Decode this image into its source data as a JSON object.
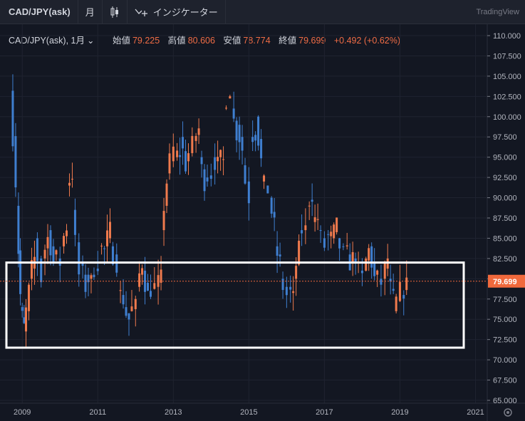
{
  "toolbar": {
    "symbol": "CAD/JPY(ask)",
    "interval": "月",
    "indicator_label": "インジケーター",
    "brand": "TradingView"
  },
  "legend": {
    "symbol": "CAD/JPY(ask), 1月",
    "open_label": "始値",
    "open": "79.225",
    "high_label": "高値",
    "high": "80.606",
    "low_label": "安値",
    "low": "78.774",
    "close_label": "終値",
    "close": "79.699",
    "change": "+0.492 (+0.62%)"
  },
  "colors": {
    "up": "#ef7a4d",
    "down": "#3f7fd0",
    "background": "#131722",
    "highlight_box": "#ffffff",
    "price_tag": "#f0693c"
  },
  "chart_data": {
    "type": "candlestick",
    "title": "CAD/JPY(ask), 1月",
    "y_axis_ticks": [
      "110.000",
      "107.500",
      "105.000",
      "102.500",
      "100.000",
      "97.500",
      "95.000",
      "92.500",
      "90.000",
      "87.500",
      "85.000",
      "82.500",
      "80.000",
      "77.500",
      "75.000",
      "72.500",
      "70.000",
      "67.500",
      "65.000"
    ],
    "ylim": [
      65,
      110
    ],
    "x_axis_ticks": [
      "2009",
      "2011",
      "2013",
      "2015",
      "2017",
      "2019",
      "2021"
    ],
    "last_price": "79.699",
    "highlight_range": [
      71.5,
      82.0
    ],
    "monthly_closes": [
      [
        2008.75,
        103.2,
        92.0
      ],
      [
        2008.9,
        89.0,
        78.0
      ],
      [
        2009.0,
        76.5,
        74.0
      ],
      [
        2009.1,
        73.5,
        78.5
      ],
      [
        2009.25,
        80.0,
        82.5
      ],
      [
        2009.4,
        85.0,
        80.0
      ],
      [
        2009.6,
        82.5,
        85.0
      ],
      [
        2009.75,
        86.0,
        82.0
      ],
      [
        2009.9,
        83.0,
        82.0
      ],
      [
        2010.1,
        84.0,
        86.5
      ],
      [
        2010.25,
        91.5,
        93.0
      ],
      [
        2010.4,
        88.5,
        80.5
      ],
      [
        2010.6,
        82.0,
        79.0
      ],
      [
        2010.75,
        80.5,
        79.5
      ],
      [
        2010.9,
        80.5,
        82.0
      ],
      [
        2011.1,
        84.0,
        83.5
      ],
      [
        2011.25,
        84.0,
        86.0
      ],
      [
        2011.4,
        84.0,
        82.0
      ],
      [
        2011.6,
        78.5,
        77.5
      ],
      [
        2011.75,
        76.5,
        75.0
      ],
      [
        2011.9,
        76.0,
        76.5
      ],
      [
        2012.1,
        79.0,
        82.0
      ],
      [
        2012.25,
        81.0,
        78.0
      ],
      [
        2012.4,
        78.5,
        79.0
      ],
      [
        2012.6,
        79.0,
        80.0
      ],
      [
        2012.75,
        86.0,
        92.0
      ],
      [
        2012.9,
        93.0,
        96.0
      ],
      [
        2013.1,
        95.0,
        95.5
      ],
      [
        2013.25,
        97.5,
        94.0
      ],
      [
        2013.4,
        94.5,
        96.5
      ],
      [
        2013.6,
        97.0,
        98.5
      ],
      [
        2013.75,
        95.0,
        92.0
      ],
      [
        2013.9,
        92.5,
        93.0
      ],
      [
        2014.1,
        95.0,
        94.0
      ],
      [
        2014.25,
        95.0,
        94.5
      ],
      [
        2014.4,
        101.0,
        103.5
      ],
      [
        2014.6,
        101.0,
        98.0
      ],
      [
        2014.75,
        99.0,
        96.0
      ],
      [
        2014.9,
        94.0,
        90.0
      ],
      [
        2015.1,
        97.5,
        98.0
      ],
      [
        2015.25,
        100.0,
        94.5
      ],
      [
        2015.4,
        92.0,
        91.0
      ],
      [
        2015.6,
        90.0,
        86.5
      ],
      [
        2015.75,
        84.0,
        82.0
      ],
      [
        2015.9,
        80.0,
        78.0
      ],
      [
        2016.1,
        79.0,
        77.5
      ],
      [
        2016.25,
        80.0,
        83.5
      ],
      [
        2016.4,
        86.0,
        86.0
      ],
      [
        2016.6,
        89.0,
        90.5
      ],
      [
        2016.75,
        87.0,
        87.5
      ],
      [
        2016.9,
        86.0,
        84.0
      ],
      [
        2017.1,
        85.5,
        85.0
      ],
      [
        2017.25,
        85.0,
        86.5
      ],
      [
        2017.4,
        85.0,
        83.0
      ],
      [
        2017.6,
        84.0,
        82.0
      ],
      [
        2017.75,
        82.0,
        83.0
      ],
      [
        2017.9,
        82.0,
        80.0
      ],
      [
        2018.1,
        81.0,
        83.5
      ],
      [
        2018.25,
        84.0,
        80.0
      ],
      [
        2018.4,
        80.5,
        79.5
      ],
      [
        2018.6,
        80.0,
        82.5
      ],
      [
        2018.75,
        80.0,
        77.5
      ],
      [
        2018.9,
        76.0,
        78.5
      ],
      [
        2019.1,
        78.0,
        79.225
      ],
      [
        2019.25,
        79.225,
        79.699
      ]
    ]
  }
}
